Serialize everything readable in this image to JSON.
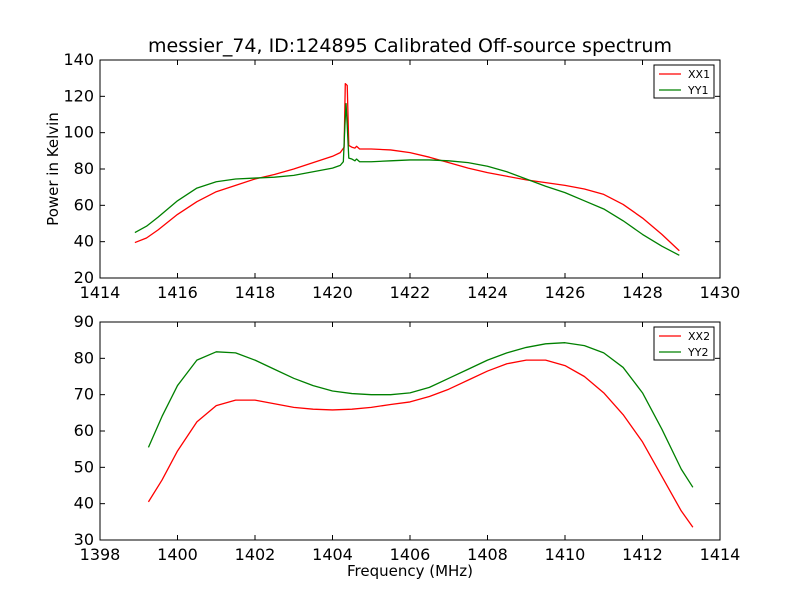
{
  "title": "messier_74, ID:124895 Calibrated Off-source spectrum",
  "chart_data": [
    {
      "type": "line",
      "xlabel": "",
      "ylabel": "Power in Kelvin",
      "xlim": [
        1414,
        1430
      ],
      "ylim": [
        20,
        140
      ],
      "xticks": [
        1414,
        1416,
        1418,
        1420,
        1422,
        1424,
        1426,
        1428,
        1430
      ],
      "yticks": [
        20,
        40,
        60,
        80,
        100,
        120,
        140
      ],
      "grid": false,
      "legend_position": "top-right",
      "series": [
        {
          "name": "XX1",
          "color": "#ff0000",
          "points": [
            [
              1414.9,
              39.5
            ],
            [
              1415.2,
              42.0
            ],
            [
              1415.5,
              46.5
            ],
            [
              1416.0,
              55.0
            ],
            [
              1416.5,
              62.0
            ],
            [
              1417.0,
              67.5
            ],
            [
              1417.5,
              71.0
            ],
            [
              1418.0,
              74.5
            ],
            [
              1418.5,
              77.0
            ],
            [
              1419.0,
              80.0
            ],
            [
              1419.5,
              83.5
            ],
            [
              1420.0,
              87.0
            ],
            [
              1420.2,
              89.0
            ],
            [
              1420.3,
              92.0
            ],
            [
              1420.33,
              127.0
            ],
            [
              1420.38,
              126.0
            ],
            [
              1420.42,
              93.0
            ],
            [
              1420.5,
              92.0
            ],
            [
              1420.58,
              91.5
            ],
            [
              1420.62,
              92.5
            ],
            [
              1420.7,
              91.0
            ],
            [
              1421.0,
              91.0
            ],
            [
              1421.5,
              90.5
            ],
            [
              1422.0,
              89.0
            ],
            [
              1422.5,
              86.5
            ],
            [
              1423.0,
              83.5
            ],
            [
              1423.5,
              80.5
            ],
            [
              1424.0,
              78.0
            ],
            [
              1424.5,
              76.0
            ],
            [
              1425.0,
              74.0
            ],
            [
              1425.5,
              72.5
            ],
            [
              1426.0,
              71.0
            ],
            [
              1426.5,
              69.0
            ],
            [
              1427.0,
              66.0
            ],
            [
              1427.5,
              60.5
            ],
            [
              1428.0,
              53.0
            ],
            [
              1428.5,
              44.0
            ],
            [
              1428.95,
              35.0
            ]
          ]
        },
        {
          "name": "YY1",
          "color": "#008000",
          "points": [
            [
              1414.9,
              45.0
            ],
            [
              1415.2,
              48.5
            ],
            [
              1415.5,
              53.5
            ],
            [
              1416.0,
              62.5
            ],
            [
              1416.5,
              69.5
            ],
            [
              1417.0,
              73.0
            ],
            [
              1417.5,
              74.5
            ],
            [
              1418.0,
              75.0
            ],
            [
              1418.5,
              75.5
            ],
            [
              1419.0,
              76.5
            ],
            [
              1419.5,
              78.5
            ],
            [
              1420.0,
              80.5
            ],
            [
              1420.2,
              82.0
            ],
            [
              1420.28,
              84.0
            ],
            [
              1420.32,
              104.0
            ],
            [
              1420.35,
              116.0
            ],
            [
              1420.38,
              104.0
            ],
            [
              1420.42,
              86.0
            ],
            [
              1420.5,
              85.5
            ],
            [
              1420.58,
              84.5
            ],
            [
              1420.62,
              85.5
            ],
            [
              1420.7,
              84.0
            ],
            [
              1421.0,
              84.0
            ],
            [
              1421.5,
              84.5
            ],
            [
              1422.0,
              85.0
            ],
            [
              1422.5,
              85.0
            ],
            [
              1423.0,
              84.5
            ],
            [
              1423.5,
              83.5
            ],
            [
              1424.0,
              81.5
            ],
            [
              1424.5,
              78.5
            ],
            [
              1425.0,
              74.5
            ],
            [
              1425.5,
              70.5
            ],
            [
              1426.0,
              67.0
            ],
            [
              1426.5,
              62.5
            ],
            [
              1427.0,
              58.0
            ],
            [
              1427.5,
              51.5
            ],
            [
              1428.0,
              44.0
            ],
            [
              1428.5,
              37.5
            ],
            [
              1428.95,
              32.5
            ]
          ]
        }
      ]
    },
    {
      "type": "line",
      "xlabel": "Frequency (MHz)",
      "ylabel": "",
      "xlim": [
        1398,
        1414
      ],
      "ylim": [
        30,
        90
      ],
      "xticks": [
        1398,
        1400,
        1402,
        1404,
        1406,
        1408,
        1410,
        1412,
        1414
      ],
      "yticks": [
        30,
        40,
        50,
        60,
        70,
        80,
        90
      ],
      "grid": false,
      "legend_position": "top-right",
      "series": [
        {
          "name": "XX2",
          "color": "#ff0000",
          "points": [
            [
              1399.25,
              40.5
            ],
            [
              1399.6,
              46.5
            ],
            [
              1400.0,
              54.5
            ],
            [
              1400.5,
              62.5
            ],
            [
              1401.0,
              67.0
            ],
            [
              1401.5,
              68.5
            ],
            [
              1402.0,
              68.5
            ],
            [
              1402.5,
              67.5
            ],
            [
              1403.0,
              66.5
            ],
            [
              1403.5,
              66.0
            ],
            [
              1404.0,
              65.8
            ],
            [
              1404.5,
              66.0
            ],
            [
              1405.0,
              66.5
            ],
            [
              1405.5,
              67.3
            ],
            [
              1406.0,
              68.0
            ],
            [
              1406.5,
              69.5
            ],
            [
              1407.0,
              71.5
            ],
            [
              1407.5,
              74.0
            ],
            [
              1408.0,
              76.5
            ],
            [
              1408.5,
              78.5
            ],
            [
              1409.0,
              79.5
            ],
            [
              1409.5,
              79.5
            ],
            [
              1410.0,
              78.0
            ],
            [
              1410.5,
              75.0
            ],
            [
              1411.0,
              70.5
            ],
            [
              1411.5,
              64.5
            ],
            [
              1412.0,
              57.0
            ],
            [
              1412.5,
              47.5
            ],
            [
              1413.0,
              38.0
            ],
            [
              1413.3,
              33.5
            ]
          ]
        },
        {
          "name": "YY2",
          "color": "#008000",
          "points": [
            [
              1399.25,
              55.5
            ],
            [
              1399.6,
              64.0
            ],
            [
              1400.0,
              72.5
            ],
            [
              1400.5,
              79.5
            ],
            [
              1401.0,
              81.8
            ],
            [
              1401.5,
              81.5
            ],
            [
              1402.0,
              79.5
            ],
            [
              1402.5,
              77.0
            ],
            [
              1403.0,
              74.5
            ],
            [
              1403.5,
              72.5
            ],
            [
              1404.0,
              71.0
            ],
            [
              1404.5,
              70.3
            ],
            [
              1405.0,
              70.0
            ],
            [
              1405.5,
              70.0
            ],
            [
              1406.0,
              70.5
            ],
            [
              1406.5,
              72.0
            ],
            [
              1407.0,
              74.5
            ],
            [
              1407.5,
              77.0
            ],
            [
              1408.0,
              79.5
            ],
            [
              1408.5,
              81.5
            ],
            [
              1409.0,
              83.0
            ],
            [
              1409.5,
              84.0
            ],
            [
              1410.0,
              84.3
            ],
            [
              1410.5,
              83.5
            ],
            [
              1411.0,
              81.5
            ],
            [
              1411.5,
              77.5
            ],
            [
              1412.0,
              70.5
            ],
            [
              1412.5,
              60.5
            ],
            [
              1413.0,
              49.5
            ],
            [
              1413.3,
              44.5
            ]
          ]
        }
      ]
    }
  ]
}
